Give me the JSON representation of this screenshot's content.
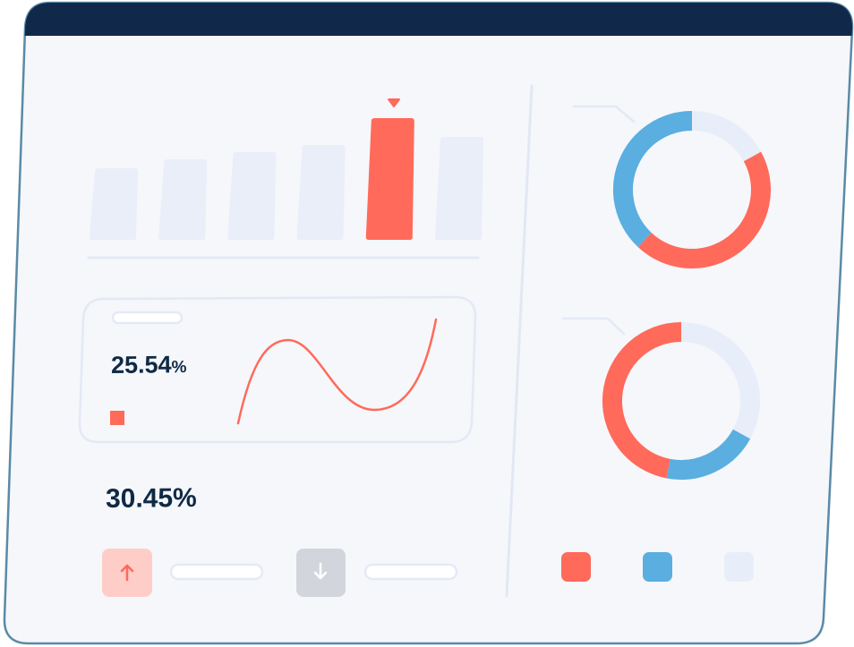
{
  "colors": {
    "frame_header": "#10294a",
    "frame_border": "#5a8aa6",
    "panel_bg": "#f5f7fb",
    "placeholder": "#e9eef9",
    "accent_red": "#ff6a5a",
    "accent_blue": "#5aaee0",
    "light_segment": "#e8eef9",
    "text_dark": "#0f2a45",
    "up_button_bg": "#ffcdc7",
    "down_button_bg": "#d2d6dc"
  },
  "stats": {
    "value_1": "25.54",
    "value_1_unit": "%",
    "value_2": "30.45%"
  },
  "buttons": {
    "up_icon": "arrow-up-icon",
    "down_icon": "arrow-down-icon"
  },
  "bar_chart": {
    "type": "bar",
    "values": [
      80,
      90,
      98,
      106,
      136,
      115
    ],
    "highlighted_index": 4,
    "marker_icon": "triangle-down-icon"
  },
  "donut_charts": [
    {
      "type": "pie",
      "segments": [
        {
          "color": "light",
          "value": 17
        },
        {
          "color": "red",
          "value": 45
        },
        {
          "color": "blue",
          "value": 38
        }
      ]
    },
    {
      "type": "pie",
      "segments": [
        {
          "color": "light",
          "value": 33
        },
        {
          "color": "blue",
          "value": 20
        },
        {
          "color": "red",
          "value": 47
        }
      ]
    }
  ],
  "legend": [
    {
      "color": "red"
    },
    {
      "color": "blue"
    },
    {
      "color": "light"
    }
  ]
}
